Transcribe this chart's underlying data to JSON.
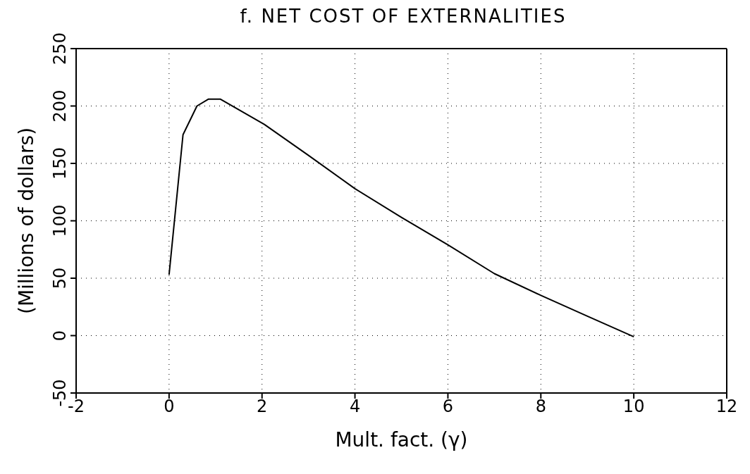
{
  "chart_data": {
    "type": "line",
    "title": "f. NET COST OF EXTERNALITIES",
    "xlabel": "Mult. fact. (γ)",
    "ylabel": "(Millions of dollars)",
    "x": [
      0.0,
      0.3,
      0.6,
      0.85,
      1.1,
      2.05,
      3,
      4,
      5,
      6,
      7,
      8,
      9,
      10
    ],
    "series": [
      {
        "color": "#000000",
        "values": [
          53,
          175,
          200,
          206,
          206,
          184,
          157,
          128,
          103,
          79,
          54,
          35,
          17,
          -1
        ]
      }
    ],
    "xlim": [
      -2,
      12
    ],
    "xticks": [
      -2,
      0,
      2,
      4,
      6,
      8,
      10,
      12
    ],
    "ylim": [
      -50,
      250
    ],
    "yticks": [
      -50,
      0,
      50,
      100,
      150,
      200,
      250
    ],
    "grid": true,
    "marker": "none",
    "line_style": "solid",
    "legend": false
  }
}
